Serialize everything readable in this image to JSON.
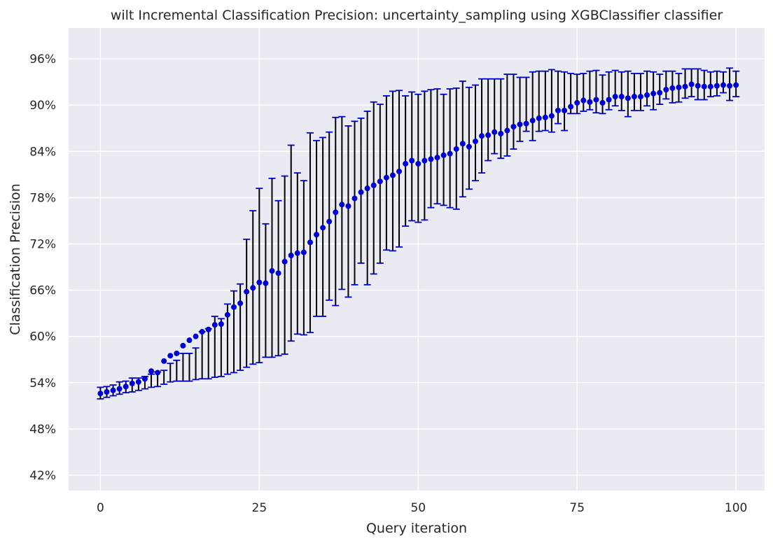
{
  "chart_data": {
    "type": "scatter",
    "title": "wilt Incremental Classification Precision: uncertainty_sampling using XGBClassifier classifier",
    "xlabel": "Query iteration",
    "ylabel": "Classification Precision",
    "xlim": [
      -5,
      104.5
    ],
    "ylim": [
      40,
      100
    ],
    "xticks": [
      0,
      25,
      50,
      75,
      100
    ],
    "xtick_labels": [
      "0",
      "25",
      "50",
      "75",
      "100"
    ],
    "yticks": [
      42,
      48,
      54,
      60,
      66,
      72,
      78,
      84,
      90,
      96
    ],
    "ytick_labels": [
      "42%",
      "48%",
      "54%",
      "60%",
      "66%",
      "72%",
      "78%",
      "84%",
      "90%",
      "96%"
    ],
    "grid": true,
    "background": "#eaeaf2",
    "grid_color": "#ffffff",
    "marker_color": "#0000cc",
    "errorbar_color": "#000000",
    "cap_color": "#0000cc",
    "series": [
      {
        "x": [
          0,
          1,
          2,
          3,
          4,
          5,
          6,
          7,
          8,
          9,
          10,
          11,
          12,
          13,
          14,
          15,
          16,
          17,
          18,
          19,
          20,
          21,
          22,
          23,
          24,
          25,
          26,
          27,
          28,
          29,
          30,
          31,
          32,
          33,
          34,
          35,
          36,
          37,
          38,
          39,
          40,
          41,
          42,
          43,
          44,
          45,
          46,
          47,
          48,
          49,
          50,
          51,
          52,
          53,
          54,
          55,
          56,
          57,
          58,
          59,
          60,
          61,
          62,
          63,
          64,
          65,
          66,
          67,
          68,
          69,
          70,
          71,
          72,
          73,
          74,
          75,
          76,
          77,
          78,
          79,
          80,
          81,
          82,
          83,
          84,
          85,
          86,
          87,
          88,
          89,
          90,
          91,
          92,
          93,
          94,
          95,
          96,
          97,
          98,
          99,
          100
        ],
        "y": [
          52.6,
          52.8,
          53.0,
          53.2,
          53.5,
          53.9,
          54.1,
          54.5,
          55.5,
          55.3,
          56.8,
          57.5,
          57.8,
          58.8,
          59.5,
          60.0,
          60.6,
          60.9,
          61.5,
          61.6,
          62.8,
          63.8,
          64.3,
          65.8,
          66.3,
          67.0,
          66.9,
          68.5,
          68.2,
          69.7,
          70.5,
          70.8,
          70.9,
          72.2,
          73.2,
          74.1,
          74.9,
          76.1,
          77.1,
          76.9,
          77.9,
          78.7,
          79.2,
          79.6,
          80.1,
          80.6,
          80.9,
          81.4,
          82.4,
          82.8,
          82.4,
          82.8,
          83.0,
          83.2,
          83.5,
          83.7,
          84.3,
          85.0,
          84.6,
          85.3,
          86.0,
          86.1,
          86.5,
          86.3,
          86.7,
          87.2,
          87.5,
          87.6,
          88.0,
          88.3,
          88.4,
          88.6,
          89.3,
          89.3,
          89.8,
          90.3,
          90.6,
          90.4,
          90.7,
          90.3,
          90.7,
          91.1,
          91.1,
          90.9,
          91.1,
          91.1,
          91.3,
          91.5,
          91.6,
          92.0,
          92.2,
          92.3,
          92.4,
          92.7,
          92.5,
          92.4,
          92.4,
          92.5,
          92.6,
          92.5,
          92.6
        ],
        "err_low": [
          51.9,
          52.1,
          52.3,
          52.5,
          52.7,
          52.8,
          53.0,
          53.2,
          53.4,
          53.5,
          53.8,
          54.1,
          54.2,
          54.2,
          54.2,
          54.4,
          54.5,
          54.5,
          54.7,
          54.8,
          55.1,
          55.3,
          55.6,
          56.0,
          56.4,
          56.6,
          57.3,
          57.3,
          57.5,
          57.7,
          59.4,
          60.3,
          60.2,
          60.5,
          62.6,
          62.6,
          64.7,
          64.0,
          66.1,
          65.1,
          66.7,
          69.5,
          66.7,
          68.1,
          69.5,
          71.2,
          71.1,
          71.6,
          74.3,
          75.0,
          74.8,
          75.1,
          76.7,
          77.2,
          77.0,
          76.7,
          76.5,
          78.1,
          79.1,
          80.2,
          81.2,
          82.8,
          83.7,
          83.1,
          83.4,
          84.3,
          85.3,
          86.6,
          85.4,
          86.6,
          86.7,
          86.5,
          87.6,
          86.7,
          88.9,
          88.9,
          89.2,
          89.4,
          89.0,
          88.9,
          89.4,
          89.9,
          89.3,
          88.5,
          89.3,
          89.3,
          89.9,
          89.4,
          90.1,
          90.8,
          90.3,
          90.4,
          90.9,
          91.1,
          90.7,
          90.7,
          91.1,
          91.2,
          91.6,
          90.6,
          91.1
        ],
        "err_high": [
          53.4,
          53.5,
          53.7,
          54.1,
          54.2,
          54.6,
          54.6,
          54.8,
          55.1,
          55.4,
          55.6,
          56.5,
          56.9,
          57.8,
          57.8,
          58.5,
          60.6,
          61.0,
          62.6,
          62.3,
          64.2,
          65.9,
          66.8,
          72.6,
          76.3,
          79.2,
          74.6,
          80.5,
          77.6,
          80.8,
          84.8,
          81.2,
          80.2,
          86.4,
          85.4,
          85.8,
          86.5,
          88.4,
          88.5,
          87.3,
          87.9,
          88.3,
          89.2,
          90.4,
          90.1,
          91.2,
          91.8,
          91.9,
          91.2,
          91.7,
          91.4,
          91.8,
          92.0,
          92.1,
          91.4,
          92.1,
          92.2,
          93.1,
          92.3,
          92.6,
          93.4,
          93.4,
          93.4,
          93.4,
          94.0,
          94.0,
          93.6,
          93.6,
          94.3,
          94.4,
          94.4,
          94.6,
          94.4,
          94.3,
          94.1,
          94.0,
          94.1,
          94.4,
          94.5,
          93.9,
          94.3,
          94.5,
          94.3,
          94.4,
          94.1,
          94.1,
          94.4,
          94.3,
          94.0,
          94.4,
          94.4,
          94.1,
          94.7,
          94.7,
          94.7,
          94.5,
          94.3,
          94.4,
          94.3,
          94.8,
          94.4
        ]
      }
    ]
  }
}
